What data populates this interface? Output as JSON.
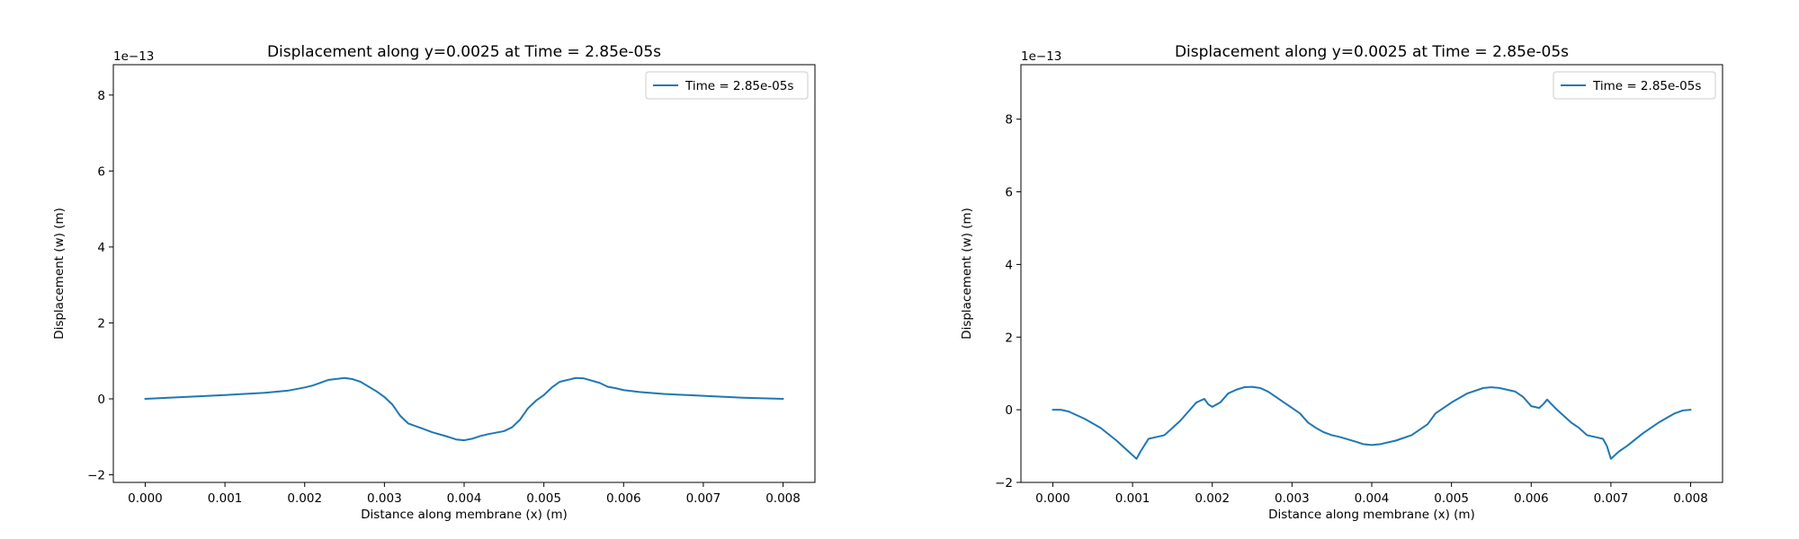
{
  "chart_data": [
    {
      "type": "line",
      "title": "Displacement along y=0.0025 at Time = 2.85e-05s",
      "xlabel": "Distance along membrane (x) (m)",
      "ylabel": "Displacement (w) (m)",
      "y_scale_label": "1e−13",
      "xlim": [
        -0.0004,
        0.0084
      ],
      "ylim": [
        -2.2,
        8.8
      ],
      "x_ticks": [
        0.0,
        0.001,
        0.002,
        0.003,
        0.004,
        0.005,
        0.006,
        0.007,
        0.008
      ],
      "x_tick_labels": [
        "0.000",
        "0.001",
        "0.002",
        "0.003",
        "0.004",
        "0.005",
        "0.006",
        "0.007",
        "0.008"
      ],
      "y_ticks": [
        -2,
        0,
        2,
        4,
        6,
        8
      ],
      "y_tick_labels": [
        "−2",
        "0",
        "2",
        "4",
        "6",
        "8"
      ],
      "grid": false,
      "legend_position": "top-right",
      "series": [
        {
          "name": "Time = 2.85e-05s",
          "color": "#1f77b4",
          "x": [
            0.0,
            0.0005,
            0.001,
            0.0015,
            0.0018,
            0.002,
            0.0021,
            0.0023,
            0.0025,
            0.0026,
            0.0027,
            0.0029,
            0.003,
            0.0031,
            0.0032,
            0.0033,
            0.0035,
            0.0036,
            0.0038,
            0.0039,
            0.004,
            0.0041,
            0.0042,
            0.0043,
            0.0045,
            0.0046,
            0.0047,
            0.0048,
            0.0049,
            0.005,
            0.0051,
            0.0052,
            0.0054,
            0.0055,
            0.0057,
            0.0058,
            0.0059,
            0.006,
            0.0062,
            0.0065,
            0.007,
            0.0075,
            0.008
          ],
          "y": [
            0.0,
            0.05,
            0.1,
            0.16,
            0.22,
            0.3,
            0.35,
            0.5,
            0.55,
            0.52,
            0.45,
            0.2,
            0.05,
            -0.15,
            -0.45,
            -0.65,
            -0.8,
            -0.88,
            -1.0,
            -1.07,
            -1.09,
            -1.05,
            -0.98,
            -0.93,
            -0.85,
            -0.75,
            -0.55,
            -0.25,
            -0.05,
            0.1,
            0.3,
            0.45,
            0.55,
            0.54,
            0.42,
            0.32,
            0.28,
            0.23,
            0.18,
            0.13,
            0.08,
            0.03,
            0.0
          ]
        }
      ]
    },
    {
      "type": "line",
      "title": "Displacement along y=0.0025 at Time = 2.85e-05s",
      "xlabel": "Distance along membrane (x) (m)",
      "ylabel": "Displacement (w) (m)",
      "y_scale_label": "1e−13",
      "xlim": [
        -0.0004,
        0.0084
      ],
      "ylim": [
        -2.0,
        9.5
      ],
      "x_ticks": [
        0.0,
        0.001,
        0.002,
        0.003,
        0.004,
        0.005,
        0.006,
        0.007,
        0.008
      ],
      "x_tick_labels": [
        "0.000",
        "0.001",
        "0.002",
        "0.003",
        "0.004",
        "0.005",
        "0.006",
        "0.007",
        "0.008"
      ],
      "y_ticks": [
        -2,
        0,
        2,
        4,
        6,
        8
      ],
      "y_tick_labels": [
        "−2",
        "0",
        "2",
        "4",
        "6",
        "8"
      ],
      "grid": false,
      "legend_position": "top-right",
      "series": [
        {
          "name": "Time = 2.85e-05s",
          "color": "#1f77b4",
          "x": [
            0.0,
            0.0001,
            0.0002,
            0.0004,
            0.0006,
            0.0008,
            0.0009,
            0.00105,
            0.0011,
            0.0012,
            0.0013,
            0.0014,
            0.0015,
            0.0016,
            0.0017,
            0.0018,
            0.0019,
            0.00195,
            0.002,
            0.0021,
            0.0022,
            0.0023,
            0.0024,
            0.0025,
            0.0026,
            0.0027,
            0.0028,
            0.0029,
            0.003,
            0.0031,
            0.0032,
            0.0033,
            0.0034,
            0.0035,
            0.0036,
            0.0038,
            0.0039,
            0.004,
            0.0041,
            0.0043,
            0.0045,
            0.0047,
            0.0048,
            0.005,
            0.0052,
            0.0054,
            0.0055,
            0.0056,
            0.0057,
            0.0058,
            0.0059,
            0.006,
            0.0061,
            0.00615,
            0.0062,
            0.0063,
            0.0064,
            0.0065,
            0.0066,
            0.0067,
            0.0068,
            0.0069,
            0.00695,
            0.007,
            0.0071,
            0.0072,
            0.0074,
            0.0076,
            0.0078,
            0.0079,
            0.008
          ],
          "y": [
            0.0,
            0.0,
            -0.05,
            -0.25,
            -0.5,
            -0.85,
            -1.05,
            -1.35,
            -1.15,
            -0.8,
            -0.75,
            -0.7,
            -0.5,
            -0.3,
            -0.05,
            0.2,
            0.3,
            0.15,
            0.08,
            0.2,
            0.45,
            0.55,
            0.62,
            0.63,
            0.6,
            0.5,
            0.35,
            0.2,
            0.05,
            -0.1,
            -0.35,
            -0.5,
            -0.62,
            -0.7,
            -0.75,
            -0.88,
            -0.95,
            -0.97,
            -0.95,
            -0.85,
            -0.7,
            -0.4,
            -0.1,
            0.2,
            0.45,
            0.6,
            0.62,
            0.6,
            0.55,
            0.5,
            0.35,
            0.1,
            0.05,
            0.15,
            0.28,
            0.05,
            -0.15,
            -0.35,
            -0.5,
            -0.7,
            -0.75,
            -0.8,
            -1.0,
            -1.35,
            -1.15,
            -1.0,
            -0.65,
            -0.35,
            -0.1,
            -0.02,
            0.0
          ]
        }
      ]
    }
  ]
}
